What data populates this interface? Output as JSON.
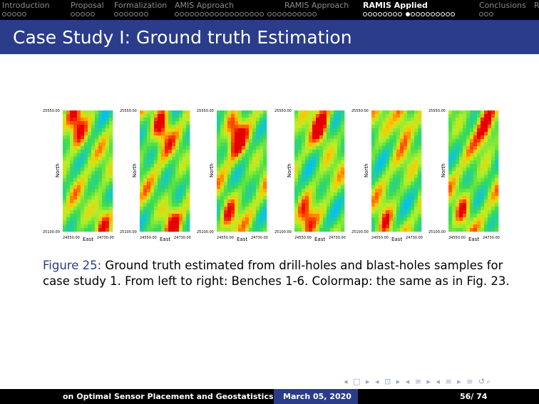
{
  "nav": {
    "sections": [
      {
        "label": "Introduction",
        "dots": 5,
        "current": -1,
        "active": false
      },
      {
        "label": "Proposal",
        "dots": 5,
        "current": -1,
        "active": false
      },
      {
        "label": "Formalization",
        "dots": 7,
        "current": -1,
        "active": false
      },
      {
        "label": "AMIS Approach",
        "dots": 18,
        "dots2": 10,
        "current": -1,
        "active": false
      },
      {
        "label": "RAMIS Approach",
        "dots": 0,
        "current": -1,
        "active": false
      },
      {
        "label": "RAMIS Applied",
        "dots": 8,
        "dots2": 10,
        "current": 8,
        "active": true
      },
      {
        "label": "Conclusions",
        "dots": 3,
        "current": -1,
        "active": false
      },
      {
        "label": "R",
        "dots": 0,
        "current": -1,
        "active": false
      }
    ]
  },
  "slide": {
    "title": "Case Study I: Ground truth Estimation"
  },
  "figure": {
    "panels": [
      {
        "ymax": "25550.00",
        "ymin": "25100.00",
        "xmin": "24550.00",
        "xmax": "24730.00",
        "ylabel": "North",
        "xlabel": "East"
      },
      {
        "ymax": "25550.00",
        "ymin": "25100.00",
        "xmin": "24550.00",
        "xmax": "24730.00",
        "ylabel": "North",
        "xlabel": "East"
      },
      {
        "ymax": "25550.00",
        "ymin": "25100.00",
        "xmin": "24550.00",
        "xmax": "24730.00",
        "ylabel": "North",
        "xlabel": "East"
      },
      {
        "ymax": "25550.00",
        "ymin": "25100.00",
        "xmin": "24550.00",
        "xmax": "24730.00",
        "ylabel": "North",
        "xlabel": "East"
      },
      {
        "ymax": "25550.00",
        "ymin": "25100.00",
        "xmin": "24550.00",
        "xmax": "24730.00",
        "ylabel": "North",
        "xlabel": "East"
      },
      {
        "ymax": "25550.00",
        "ymin": "25100.00",
        "xmin": "24550.00",
        "xmax": "24730.00",
        "ylabel": "North",
        "xlabel": "East"
      }
    ],
    "caption_label": "Figure 25:",
    "caption_text": " Ground truth estimated from drill-holes and blast-holes samples for case study 1. From left to right: Benches 1-6. Colormap: the same as in Fig. 23."
  },
  "footer": {
    "left": "on Optimal Sensor Placement and Geostatistics",
    "date": "March 05, 2020",
    "page": "56/ 74"
  },
  "colors": {
    "nav_bg": "#000000",
    "title_bg": "#2a3c8a",
    "accent": "#2a3c8a"
  }
}
